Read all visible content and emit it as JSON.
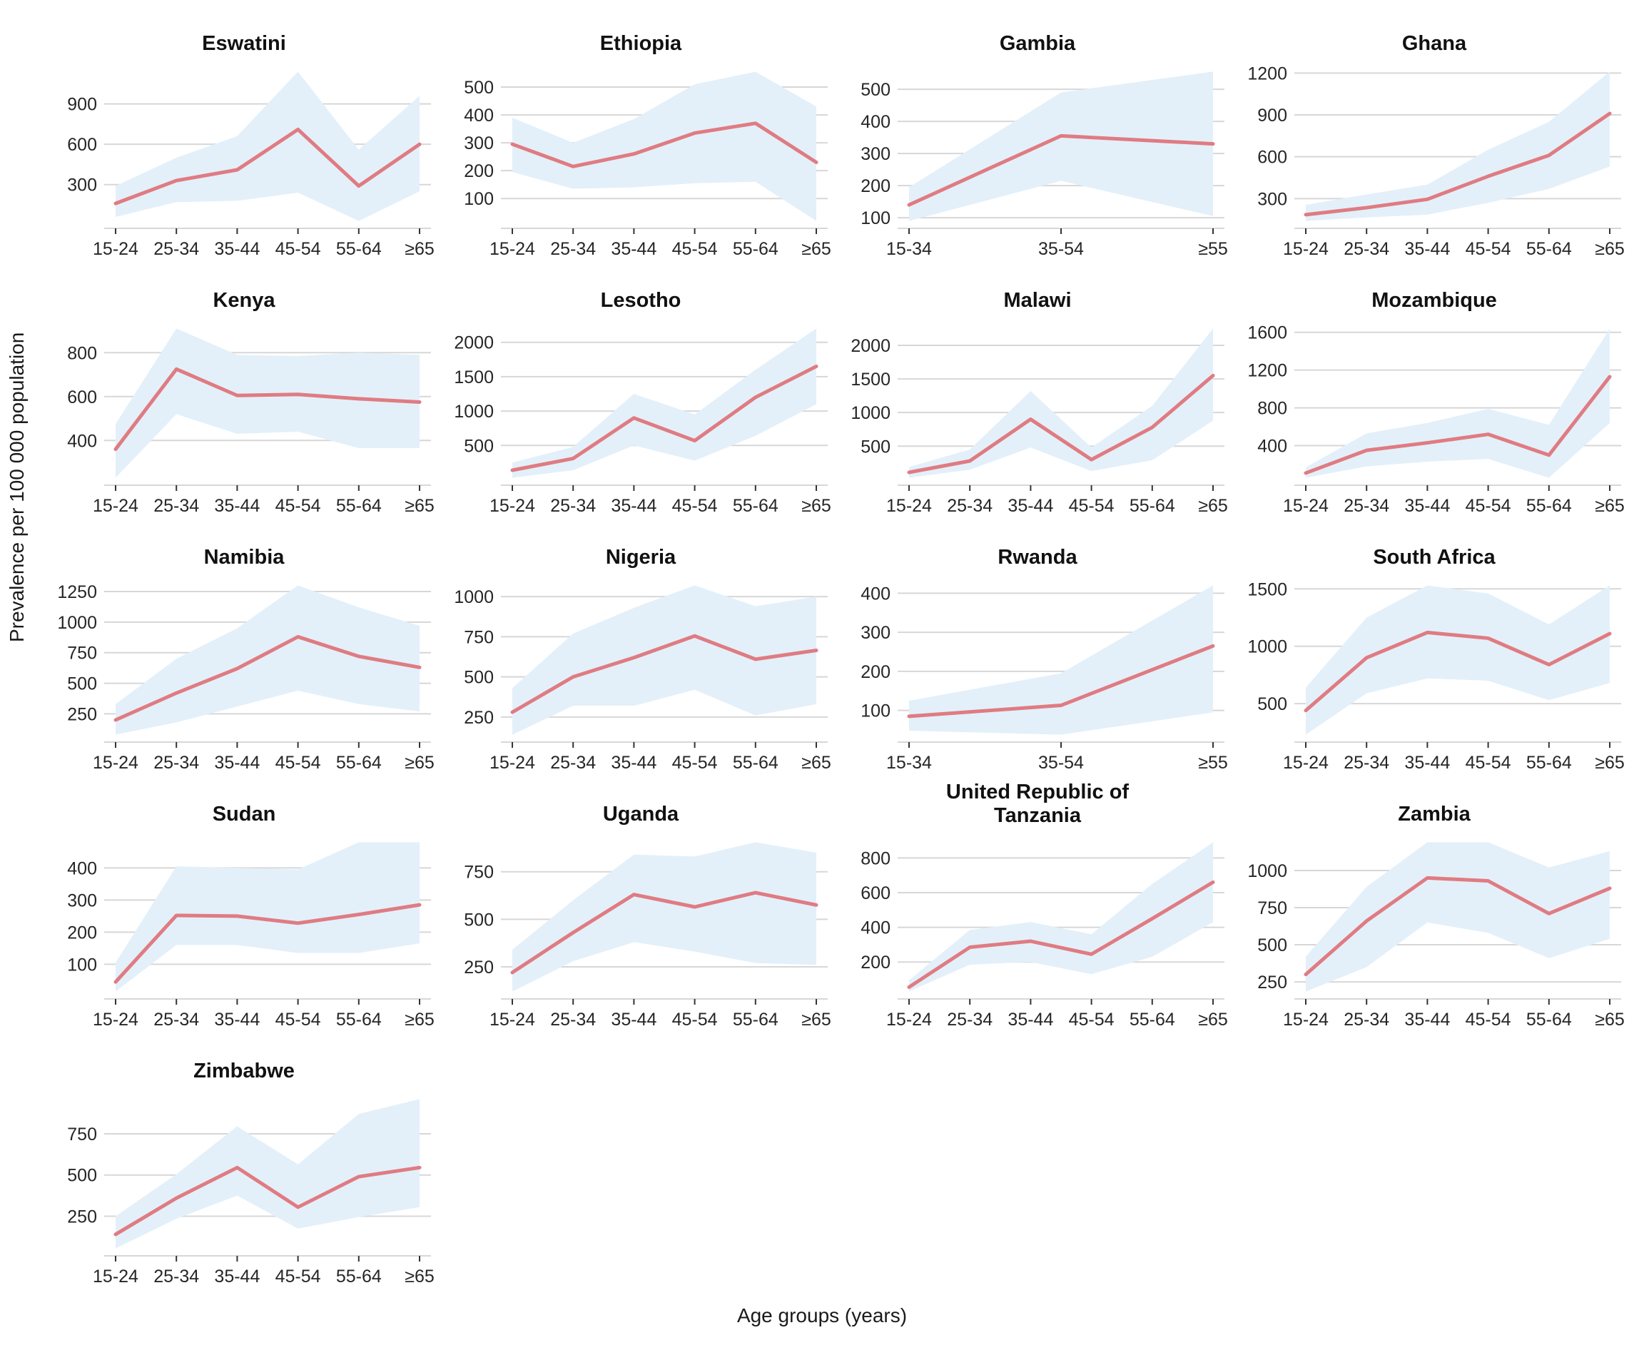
{
  "chart_data": {
    "type": "line",
    "title": "",
    "xlabel": "Age groups (years)",
    "ylabel": "Prevalence per 100 000 population",
    "legend": "none",
    "grid": "horizontal-major-only",
    "layout": {
      "columns": 4,
      "rows": 5
    },
    "colors": {
      "line": "#E07B82",
      "band": "#E3F0F9",
      "gridline": "#D7D7D7",
      "tick_mark": "#333333",
      "tick_label": "#262626",
      "title_text": "#111111"
    },
    "panels": [
      {
        "name": "Eswatini",
        "categories": [
          "15-24",
          "25-34",
          "35-44",
          "45-54",
          "55-64",
          "≥65"
        ],
        "y_ticks": [
          300,
          600,
          900
        ],
        "ylim": [
          -25,
          1195
        ],
        "values": [
          160,
          330,
          410,
          710,
          290,
          600
        ],
        "lower": [
          60,
          170,
          180,
          240,
          30,
          250
        ],
        "upper": [
          290,
          500,
          660,
          1140,
          560,
          960
        ]
      },
      {
        "name": "Ethiopia",
        "categories": [
          "15-24",
          "25-34",
          "35-44",
          "45-54",
          "55-64",
          "≥65"
        ],
        "y_ticks": [
          100,
          200,
          300,
          400,
          500
        ],
        "ylim": [
          -7,
          582
        ],
        "values": [
          295,
          215,
          260,
          335,
          370,
          230
        ],
        "lower": [
          195,
          135,
          140,
          155,
          160,
          20
        ],
        "upper": [
          390,
          300,
          385,
          510,
          555,
          430
        ]
      },
      {
        "name": "Gambia",
        "categories": [
          "15-34",
          "35-54",
          "≥55"
        ],
        "y_ticks": [
          100,
          200,
          300,
          400,
          500
        ],
        "ylim": [
          67,
          578
        ],
        "values": [
          140,
          355,
          330
        ],
        "lower": [
          90,
          215,
          105
        ],
        "upper": [
          195,
          490,
          555
        ]
      },
      {
        "name": "Ghana",
        "categories": [
          "15-24",
          "25-34",
          "35-44",
          "45-54",
          "55-64",
          "≥65"
        ],
        "y_ticks": [
          300,
          600,
          900,
          1200
        ],
        "ylim": [
          87,
          1263
        ],
        "values": [
          185,
          235,
          295,
          460,
          610,
          910
        ],
        "lower": [
          140,
          165,
          185,
          270,
          370,
          530
        ],
        "upper": [
          255,
          330,
          400,
          650,
          850,
          1210
        ]
      },
      {
        "name": "Kenya",
        "categories": [
          "15-24",
          "25-34",
          "35-44",
          "45-54",
          "55-64",
          "≥65"
        ],
        "y_ticks": [
          400,
          600,
          800
        ],
        "ylim": [
          196,
          944
        ],
        "values": [
          360,
          725,
          605,
          610,
          590,
          575
        ],
        "lower": [
          230,
          520,
          430,
          440,
          365,
          365
        ],
        "upper": [
          475,
          910,
          790,
          785,
          800,
          790
        ]
      },
      {
        "name": "Lesotho",
        "categories": [
          "15-24",
          "25-34",
          "35-44",
          "45-54",
          "55-64",
          "≥65"
        ],
        "y_ticks": [
          500,
          1000,
          1500,
          2000
        ],
        "ylim": [
          -78,
          2308
        ],
        "values": [
          140,
          310,
          900,
          570,
          1200,
          1650
        ],
        "lower": [
          30,
          140,
          500,
          280,
          640,
          1100
        ],
        "upper": [
          250,
          480,
          1250,
          950,
          1600,
          2200
        ]
      },
      {
        "name": "Malawi",
        "categories": [
          "15-24",
          "25-34",
          "35-44",
          "45-54",
          "55-64",
          "≥65"
        ],
        "y_ticks": [
          500,
          1000,
          1500,
          2000
        ],
        "ylim": [
          -81,
          2361
        ],
        "values": [
          110,
          280,
          900,
          300,
          780,
          1550
        ],
        "lower": [
          30,
          150,
          480,
          130,
          290,
          880
        ],
        "upper": [
          190,
          450,
          1320,
          480,
          1100,
          2250
        ]
      },
      {
        "name": "Mozambique",
        "categories": [
          "15-24",
          "25-34",
          "35-44",
          "45-54",
          "55-64",
          "≥65"
        ],
        "y_ticks": [
          400,
          800,
          1200,
          1600
        ],
        "ylim": [
          -19,
          1719
        ],
        "values": [
          110,
          350,
          430,
          520,
          300,
          1130
        ],
        "lower": [
          60,
          180,
          230,
          260,
          60,
          640
        ],
        "upper": [
          170,
          530,
          640,
          790,
          620,
          1640
        ]
      },
      {
        "name": "Namibia",
        "categories": [
          "15-24",
          "25-34",
          "35-44",
          "45-54",
          "55-64",
          "≥65"
        ],
        "y_ticks": [
          250,
          500,
          750,
          1000,
          1250
        ],
        "ylim": [
          19,
          1361
        ],
        "values": [
          200,
          420,
          620,
          880,
          720,
          630
        ],
        "lower": [
          80,
          180,
          310,
          440,
          330,
          270
        ],
        "upper": [
          330,
          700,
          950,
          1300,
          1120,
          970
        ]
      },
      {
        "name": "Nigeria",
        "categories": [
          "15-24",
          "25-34",
          "35-44",
          "45-54",
          "55-64",
          "≥65"
        ],
        "y_ticks": [
          250,
          500,
          750,
          1000
        ],
        "ylim": [
          94,
          1116
        ],
        "values": [
          280,
          500,
          620,
          755,
          610,
          665
        ],
        "lower": [
          140,
          320,
          320,
          420,
          260,
          330
        ],
        "upper": [
          430,
          770,
          930,
          1070,
          940,
          1000
        ]
      },
      {
        "name": "Rwanda",
        "categories": [
          "15-34",
          "35-54",
          "≥55"
        ],
        "y_ticks": [
          100,
          200,
          300,
          400
        ],
        "ylim": [
          19,
          439
        ],
        "values": [
          85,
          113,
          265
        ],
        "lower": [
          48,
          38,
          95
        ],
        "upper": [
          125,
          195,
          420
        ]
      },
      {
        "name": "South Africa",
        "categories": [
          "15-24",
          "25-34",
          "35-44",
          "45-54",
          "55-64",
          "≥65"
        ],
        "y_ticks": [
          500,
          1000,
          1500
        ],
        "ylim": [
          165,
          1595
        ],
        "values": [
          440,
          900,
          1120,
          1070,
          840,
          1110
        ],
        "lower": [
          230,
          590,
          720,
          700,
          530,
          680
        ],
        "upper": [
          640,
          1250,
          1530,
          1460,
          1190,
          1530
        ]
      },
      {
        "name": "Sudan",
        "categories": [
          "15-24",
          "25-34",
          "35-44",
          "45-54",
          "55-64",
          "≥65"
        ],
        "y_ticks": [
          100,
          200,
          300,
          400
        ],
        "ylim": [
          -8,
          503
        ],
        "values": [
          45,
          252,
          250,
          228,
          255,
          285
        ],
        "lower": [
          15,
          160,
          160,
          135,
          135,
          165
        ],
        "upper": [
          105,
          405,
          400,
          395,
          480,
          480
        ]
      },
      {
        "name": "Uganda",
        "categories": [
          "15-24",
          "25-34",
          "35-44",
          "45-54",
          "55-64",
          "≥65"
        ],
        "y_ticks": [
          250,
          500,
          750
        ],
        "ylim": [
          81,
          944
        ],
        "values": [
          220,
          430,
          630,
          565,
          640,
          575
        ],
        "lower": [
          120,
          280,
          380,
          330,
          270,
          260
        ],
        "upper": [
          340,
          600,
          840,
          830,
          905,
          850
        ]
      },
      {
        "name": "United Republic of Tanzania",
        "display_name": "United Republic of\nTanzania",
        "categories": [
          "15-24",
          "25-34",
          "35-44",
          "45-54",
          "55-64",
          "≥65"
        ],
        "y_ticks": [
          200,
          400,
          600,
          800
        ],
        "ylim": [
          -13,
          933
        ],
        "values": [
          55,
          285,
          320,
          245,
          450,
          660
        ],
        "lower": [
          30,
          185,
          200,
          130,
          230,
          430
        ],
        "upper": [
          95,
          385,
          430,
          360,
          650,
          890
        ]
      },
      {
        "name": "Zambia",
        "categories": [
          "15-24",
          "25-34",
          "35-44",
          "45-54",
          "55-64",
          "≥65"
        ],
        "y_ticks": [
          250,
          500,
          750,
          1000
        ],
        "ylim": [
          135,
          1240
        ],
        "values": [
          300,
          660,
          950,
          930,
          710,
          880
        ],
        "lower": [
          185,
          350,
          650,
          580,
          410,
          540
        ],
        "upper": [
          420,
          890,
          1190,
          1190,
          1020,
          1130
        ]
      },
      {
        "name": "Zimbabwe",
        "categories": [
          "15-24",
          "25-34",
          "35-44",
          "45-54",
          "55-64",
          "≥65"
        ],
        "y_ticks": [
          250,
          500,
          750
        ],
        "ylim": [
          10,
          1005
        ],
        "values": [
          140,
          360,
          545,
          305,
          490,
          545
        ],
        "lower": [
          55,
          235,
          375,
          175,
          245,
          305
        ],
        "upper": [
          250,
          505,
          795,
          565,
          870,
          960
        ]
      }
    ]
  }
}
